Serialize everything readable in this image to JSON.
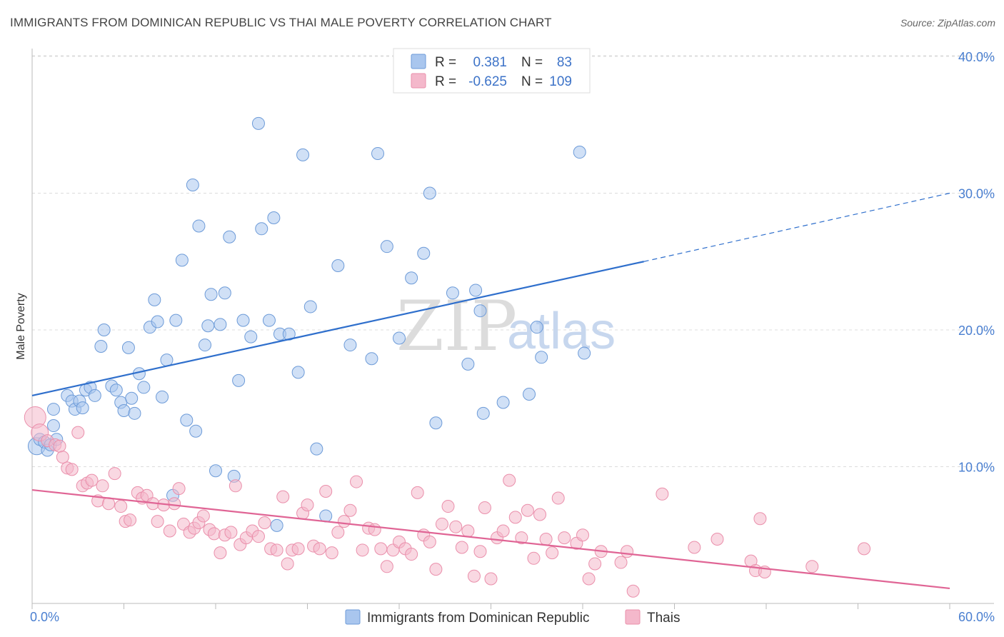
{
  "header": {
    "title": "IMMIGRANTS FROM DOMINICAN REPUBLIC VS THAI MALE POVERTY CORRELATION CHART",
    "source": "Source: ZipAtlas.com"
  },
  "watermark": {
    "zip": "ZIP",
    "atlas": "atlas"
  },
  "legend": {
    "rows": [
      {
        "r_label": "R =",
        "r_value": "0.381",
        "n_label": "N =",
        "n_value": "83",
        "color": "#a9c6ee"
      },
      {
        "r_label": "R =",
        "r_value": "-0.625",
        "n_label": "N =",
        "n_value": "109",
        "color": "#f4b8cb"
      }
    ]
  },
  "chart_data": {
    "type": "scatter",
    "title": "IMMIGRANTS FROM DOMINICAN REPUBLIC VS THAI MALE POVERTY CORRELATION CHART",
    "xlabel": "",
    "ylabel": "Male Poverty",
    "xlim": [
      0,
      60
    ],
    "ylim": [
      0,
      42
    ],
    "x_tick_labels": [
      "0.0%",
      "60.0%"
    ],
    "y_ticks": [
      10,
      20,
      30,
      40
    ],
    "y_tick_labels": [
      "10.0%",
      "20.0%",
      "30.0%",
      "40.0%"
    ],
    "grid": true,
    "legend_position": "top-center",
    "series": [
      {
        "name": "Immigrants from Dominican Republic",
        "color": "#a9c6ee",
        "stroke": "#6d9bd8",
        "line_color": "#2f6fcc",
        "trend": {
          "x0": 0,
          "y0": 15.2,
          "x1": 40,
          "y1": 25.0,
          "dashed_to_x": 60,
          "dashed_to_y": 30.0
        },
        "points": [
          [
            0.3,
            11.5
          ],
          [
            0.5,
            12.0
          ],
          [
            0.8,
            11.8
          ],
          [
            1.0,
            11.2
          ],
          [
            1.2,
            11.6
          ],
          [
            1.4,
            13.0
          ],
          [
            1.6,
            12.0
          ],
          [
            1.4,
            14.2
          ],
          [
            2.3,
            15.2
          ],
          [
            2.6,
            14.8
          ],
          [
            2.8,
            14.2
          ],
          [
            3.1,
            14.8
          ],
          [
            3.3,
            14.3
          ],
          [
            3.5,
            15.6
          ],
          [
            3.8,
            15.8
          ],
          [
            4.1,
            15.2
          ],
          [
            4.5,
            18.8
          ],
          [
            4.7,
            20.0
          ],
          [
            5.2,
            15.9
          ],
          [
            5.5,
            15.6
          ],
          [
            5.8,
            14.7
          ],
          [
            6.0,
            14.1
          ],
          [
            6.3,
            18.7
          ],
          [
            6.5,
            15.0
          ],
          [
            6.7,
            13.9
          ],
          [
            7.0,
            16.8
          ],
          [
            7.3,
            15.8
          ],
          [
            7.7,
            20.2
          ],
          [
            8.0,
            22.2
          ],
          [
            8.2,
            20.6
          ],
          [
            8.5,
            15.1
          ],
          [
            8.8,
            17.8
          ],
          [
            9.2,
            7.9
          ],
          [
            9.4,
            20.7
          ],
          [
            9.8,
            25.1
          ],
          [
            10.1,
            13.4
          ],
          [
            10.5,
            30.6
          ],
          [
            10.7,
            12.6
          ],
          [
            10.9,
            27.6
          ],
          [
            11.3,
            18.9
          ],
          [
            11.5,
            20.3
          ],
          [
            11.7,
            22.6
          ],
          [
            12.0,
            9.7
          ],
          [
            12.3,
            20.4
          ],
          [
            12.6,
            22.7
          ],
          [
            12.9,
            26.8
          ],
          [
            13.2,
            9.3
          ],
          [
            13.5,
            16.3
          ],
          [
            13.8,
            20.7
          ],
          [
            14.3,
            19.5
          ],
          [
            14.8,
            35.1
          ],
          [
            15.0,
            27.4
          ],
          [
            15.5,
            20.7
          ],
          [
            15.8,
            28.2
          ],
          [
            16.0,
            5.7
          ],
          [
            16.2,
            19.7
          ],
          [
            16.8,
            19.7
          ],
          [
            17.4,
            16.9
          ],
          [
            17.7,
            32.8
          ],
          [
            18.2,
            21.7
          ],
          [
            18.6,
            11.3
          ],
          [
            19.2,
            6.4
          ],
          [
            20.0,
            24.7
          ],
          [
            20.8,
            18.9
          ],
          [
            22.2,
            17.9
          ],
          [
            22.6,
            32.9
          ],
          [
            23.2,
            26.1
          ],
          [
            24.0,
            19.4
          ],
          [
            24.8,
            23.8
          ],
          [
            25.6,
            25.6
          ],
          [
            26.0,
            30.0
          ],
          [
            26.4,
            13.2
          ],
          [
            27.5,
            22.7
          ],
          [
            28.5,
            17.5
          ],
          [
            29.0,
            22.9
          ],
          [
            29.3,
            21.4
          ],
          [
            29.5,
            13.9
          ],
          [
            30.8,
            14.7
          ],
          [
            32.5,
            15.3
          ],
          [
            33.0,
            20.2
          ],
          [
            33.3,
            18.0
          ],
          [
            35.8,
            33.0
          ],
          [
            36.1,
            18.3
          ]
        ]
      },
      {
        "name": "Thais",
        "color": "#f4b8cb",
        "stroke": "#ea8fab",
        "line_color": "#e06595",
        "trend": {
          "x0": 0,
          "y0": 8.3,
          "x1": 60,
          "y1": 1.1
        },
        "points": [
          [
            0.2,
            13.6
          ],
          [
            0.5,
            12.5
          ],
          [
            1.0,
            11.9
          ],
          [
            1.5,
            11.6
          ],
          [
            1.8,
            11.5
          ],
          [
            2.0,
            10.7
          ],
          [
            2.3,
            9.9
          ],
          [
            2.6,
            9.8
          ],
          [
            3.0,
            12.5
          ],
          [
            3.3,
            8.6
          ],
          [
            3.6,
            8.8
          ],
          [
            3.9,
            9.0
          ],
          [
            4.3,
            7.5
          ],
          [
            4.6,
            8.6
          ],
          [
            5.0,
            7.3
          ],
          [
            5.4,
            9.5
          ],
          [
            5.8,
            7.1
          ],
          [
            6.1,
            6.0
          ],
          [
            6.4,
            6.1
          ],
          [
            6.9,
            8.1
          ],
          [
            7.2,
            7.7
          ],
          [
            7.5,
            7.9
          ],
          [
            7.9,
            7.3
          ],
          [
            8.2,
            6.0
          ],
          [
            8.6,
            7.2
          ],
          [
            9.0,
            5.3
          ],
          [
            9.3,
            7.3
          ],
          [
            9.6,
            8.4
          ],
          [
            9.9,
            5.8
          ],
          [
            10.3,
            5.2
          ],
          [
            10.6,
            5.5
          ],
          [
            10.9,
            5.9
          ],
          [
            11.2,
            6.4
          ],
          [
            11.6,
            5.4
          ],
          [
            11.9,
            5.1
          ],
          [
            12.3,
            3.7
          ],
          [
            12.6,
            5.0
          ],
          [
            13.0,
            5.2
          ],
          [
            13.3,
            8.6
          ],
          [
            13.6,
            4.3
          ],
          [
            14.0,
            4.8
          ],
          [
            14.4,
            5.3
          ],
          [
            14.8,
            4.9
          ],
          [
            15.2,
            5.9
          ],
          [
            15.6,
            4.0
          ],
          [
            16.0,
            3.9
          ],
          [
            16.4,
            7.8
          ],
          [
            16.7,
            2.9
          ],
          [
            17.0,
            3.9
          ],
          [
            17.4,
            4.0
          ],
          [
            17.7,
            6.6
          ],
          [
            18.0,
            7.2
          ],
          [
            18.4,
            4.2
          ],
          [
            18.8,
            4.0
          ],
          [
            19.2,
            8.2
          ],
          [
            19.6,
            3.7
          ],
          [
            20.0,
            5.2
          ],
          [
            20.4,
            6.0
          ],
          [
            20.8,
            6.8
          ],
          [
            21.2,
            8.9
          ],
          [
            21.6,
            3.9
          ],
          [
            22.0,
            5.5
          ],
          [
            22.4,
            5.4
          ],
          [
            22.8,
            4.0
          ],
          [
            23.2,
            2.7
          ],
          [
            23.6,
            3.9
          ],
          [
            24.0,
            4.5
          ],
          [
            24.4,
            4.0
          ],
          [
            24.8,
            3.6
          ],
          [
            25.2,
            8.1
          ],
          [
            25.6,
            5.0
          ],
          [
            26.0,
            4.5
          ],
          [
            26.4,
            2.5
          ],
          [
            26.8,
            5.8
          ],
          [
            27.2,
            7.1
          ],
          [
            27.7,
            5.6
          ],
          [
            28.1,
            4.1
          ],
          [
            28.5,
            5.3
          ],
          [
            28.9,
            2.0
          ],
          [
            29.3,
            3.8
          ],
          [
            29.6,
            7.0
          ],
          [
            30.0,
            1.8
          ],
          [
            30.4,
            4.8
          ],
          [
            30.8,
            5.3
          ],
          [
            31.2,
            9.0
          ],
          [
            31.6,
            6.3
          ],
          [
            32.0,
            4.8
          ],
          [
            32.4,
            6.8
          ],
          [
            32.8,
            3.3
          ],
          [
            33.2,
            6.5
          ],
          [
            33.6,
            4.7
          ],
          [
            34.0,
            3.7
          ],
          [
            34.4,
            7.7
          ],
          [
            34.8,
            4.8
          ],
          [
            35.6,
            4.4
          ],
          [
            36.0,
            5.0
          ],
          [
            36.4,
            1.8
          ],
          [
            36.8,
            2.9
          ],
          [
            37.2,
            3.8
          ],
          [
            38.5,
            3.0
          ],
          [
            38.9,
            3.8
          ],
          [
            39.3,
            0.9
          ],
          [
            41.2,
            8.0
          ],
          [
            43.3,
            4.1
          ],
          [
            44.8,
            4.7
          ],
          [
            47.0,
            3.1
          ],
          [
            47.3,
            2.4
          ],
          [
            47.6,
            6.2
          ],
          [
            47.9,
            2.3
          ],
          [
            51.0,
            2.7
          ],
          [
            54.4,
            4.0
          ]
        ]
      }
    ]
  },
  "axes": {
    "y_label": "Male Poverty",
    "x_min_label": "0.0%",
    "x_max_label": "60.0%"
  }
}
